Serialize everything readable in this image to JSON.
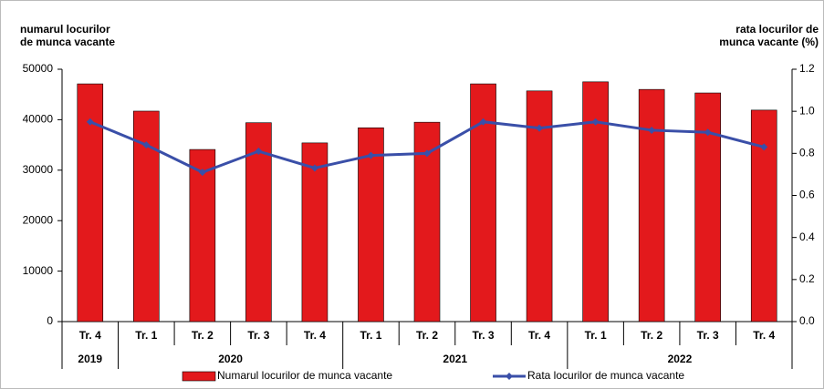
{
  "chart_data": {
    "type": "bar-line",
    "y_label": [
      "numarul locurilor",
      "de munca  vacante"
    ],
    "y2_label": [
      "rata locurilor de",
      "munca vacante (%)"
    ],
    "categories": [
      "Tr. 4",
      "Tr. 1",
      "Tr. 2",
      "Tr. 3",
      "Tr. 4",
      "Tr. 1",
      "Tr. 2",
      "Tr. 3",
      "Tr. 4",
      "Tr. 1",
      "Tr. 2",
      "Tr. 3",
      "Tr. 4"
    ],
    "groups": [
      {
        "label": "2019",
        "span": 1
      },
      {
        "label": "2020",
        "span": 4
      },
      {
        "label": "2021",
        "span": 4
      },
      {
        "label": "2022",
        "span": 4
      }
    ],
    "series": [
      {
        "name": "Numarul locurilor de munca vacante",
        "type": "bar",
        "color": "#e3191c",
        "values": [
          47100,
          41700,
          34100,
          39400,
          35400,
          38400,
          39500,
          47100,
          45700,
          47500,
          46000,
          45300,
          41900
        ]
      },
      {
        "name": "Rata locurilor de munca vacante",
        "type": "line",
        "axis": "y2",
        "color": "#3a4fa8",
        "values": [
          0.95,
          0.84,
          0.71,
          0.81,
          0.73,
          0.79,
          0.8,
          0.95,
          0.92,
          0.95,
          0.91,
          0.9,
          0.83
        ]
      }
    ],
    "ylim": [
      0,
      50000
    ],
    "yticks": [
      0,
      10000,
      20000,
      30000,
      40000,
      50000
    ],
    "y2lim": [
      0,
      1.2
    ],
    "y2ticks": [
      {
        "value": 0,
        "label": "0.0"
      },
      0.2,
      0.4,
      0.6,
      0.8,
      {
        "value": 1,
        "label": "1.0"
      },
      1.2
    ],
    "legend": "bottom"
  }
}
